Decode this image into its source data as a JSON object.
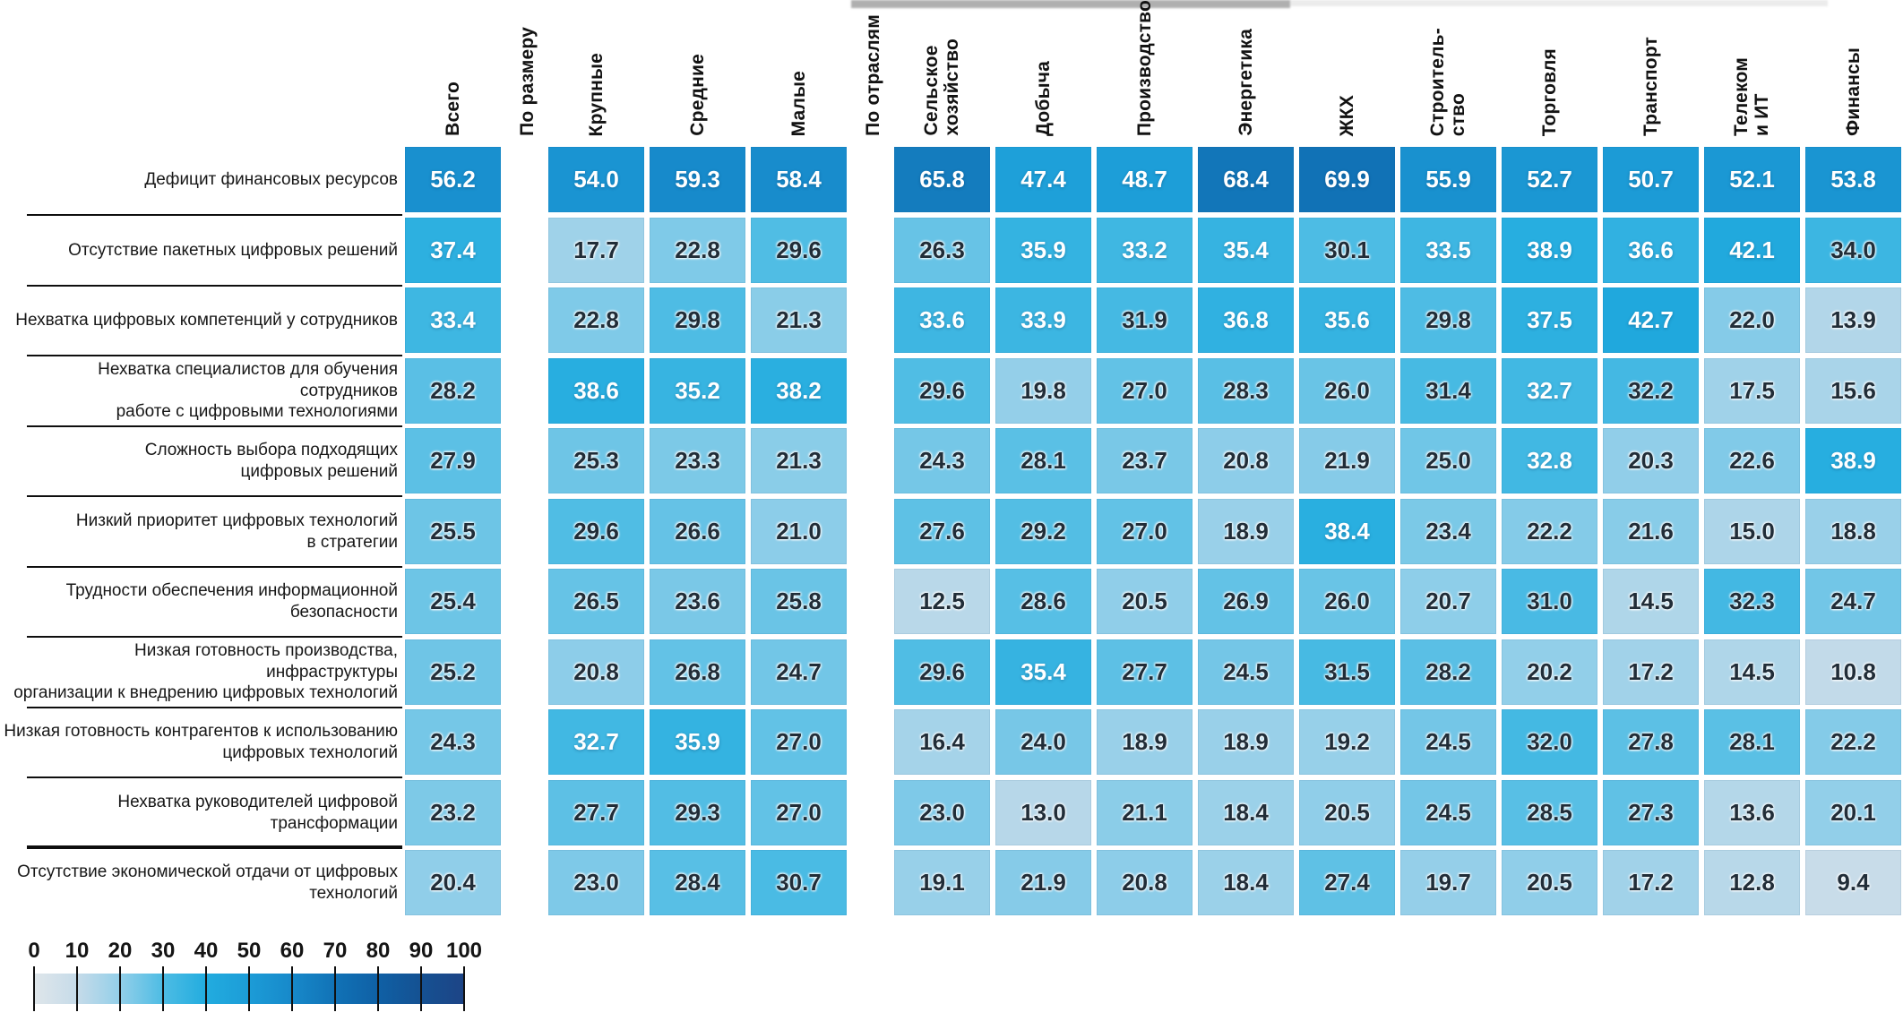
{
  "chart_data": {
    "type": "heatmap",
    "title": "",
    "column_groups": [
      {
        "label": "",
        "columns": [
          "Всего"
        ]
      },
      {
        "label": "По размеру",
        "columns": [
          "Крупные",
          "Средние",
          "Малые"
        ]
      },
      {
        "label": "По отраслям",
        "columns": [
          "Сельское\nхозяйство",
          "Добыча",
          "Производство",
          "Энергетика",
          "ЖКХ",
          "Строитель-\nство",
          "Торговля",
          "Транспорт",
          "Телеком\nи ИТ",
          "Финансы"
        ]
      }
    ],
    "rows": [
      {
        "label": "Дефицит финансовых ресурсов",
        "values": [
          56.2,
          54.0,
          59.3,
          58.4,
          65.8,
          47.4,
          48.7,
          68.4,
          69.9,
          55.9,
          52.7,
          50.7,
          52.1,
          53.8
        ],
        "white_text": [
          0,
          1,
          2,
          3,
          4,
          5,
          6,
          7,
          8,
          9,
          10,
          11,
          12,
          13
        ]
      },
      {
        "label": "Отсутствие пакетных цифровых решений",
        "values": [
          37.4,
          17.7,
          22.8,
          29.6,
          26.3,
          35.9,
          33.2,
          35.4,
          30.1,
          33.5,
          38.9,
          36.6,
          42.1,
          34.0
        ],
        "white_text": [
          0,
          5,
          6,
          7,
          9,
          10,
          11,
          12
        ]
      },
      {
        "label": "Нехватка цифровых компетенций у сотрудников",
        "values": [
          33.4,
          22.8,
          29.8,
          21.3,
          33.6,
          33.9,
          31.9,
          36.8,
          35.6,
          29.8,
          37.5,
          42.7,
          22.0,
          13.9
        ],
        "white_text": [
          0,
          4,
          5,
          7,
          8,
          10,
          11
        ]
      },
      {
        "label": "Нехватка специалистов для обучения сотрудников\nработе с цифровыми технологиями",
        "values": [
          28.2,
          38.6,
          35.2,
          38.2,
          29.6,
          19.8,
          27.0,
          28.3,
          26.0,
          31.4,
          32.7,
          32.2,
          17.5,
          15.6
        ],
        "white_text": [
          1,
          2,
          3,
          10
        ]
      },
      {
        "label": "Сложность выбора подходящих\nцифровых решений",
        "values": [
          27.9,
          25.3,
          23.3,
          21.3,
          24.3,
          28.1,
          23.7,
          20.8,
          21.9,
          25.0,
          32.8,
          20.3,
          22.6,
          38.9
        ],
        "white_text": [
          10,
          13
        ]
      },
      {
        "label": "Низкий приоритет цифровых технологий\nв стратегии",
        "values": [
          25.5,
          29.6,
          26.6,
          21.0,
          27.6,
          29.2,
          27.0,
          18.9,
          38.4,
          23.4,
          22.2,
          21.6,
          15.0,
          18.8
        ],
        "white_text": [
          8
        ]
      },
      {
        "label": "Трудности обеспечения информационной\nбезопасности",
        "values": [
          25.4,
          26.5,
          23.6,
          25.8,
          12.5,
          28.6,
          20.5,
          26.9,
          26.0,
          20.7,
          31.0,
          14.5,
          32.3,
          24.7
        ],
        "white_text": []
      },
      {
        "label": "Низкая готовность производства, инфраструктуры\nорганизации к внедрению цифровых технологий",
        "values": [
          25.2,
          20.8,
          26.8,
          24.7,
          29.6,
          35.4,
          27.7,
          24.5,
          31.5,
          28.2,
          20.2,
          17.2,
          14.5,
          10.8
        ],
        "white_text": [
          5
        ]
      },
      {
        "label": "Низкая готовность контрагентов к использованию\nцифровых технологий",
        "values": [
          24.3,
          32.7,
          35.9,
          27.0,
          16.4,
          24.0,
          18.9,
          18.9,
          19.2,
          24.5,
          32.0,
          27.8,
          28.1,
          22.2
        ],
        "white_text": [
          1,
          2
        ]
      },
      {
        "label": "Нехватка руководителей цифровой трансформации",
        "values": [
          23.2,
          27.7,
          29.3,
          27.0,
          23.0,
          13.0,
          21.1,
          18.4,
          20.5,
          24.5,
          28.5,
          27.3,
          13.6,
          20.1
        ],
        "white_text": []
      },
      {
        "label": "Отсутствие экономической отдачи от цифровых\nтехнологий",
        "values": [
          20.4,
          23.0,
          28.4,
          30.7,
          19.1,
          21.9,
          20.8,
          18.4,
          27.4,
          19.7,
          20.5,
          17.2,
          12.8,
          9.4
        ],
        "white_text": []
      }
    ],
    "legend": {
      "min": 0,
      "max": 100,
      "ticks": [
        0,
        10,
        20,
        30,
        40,
        50,
        60,
        70,
        80,
        90,
        100
      ]
    },
    "colormap": [
      [
        0,
        "#dfe6ea"
      ],
      [
        10,
        "#c6dbe9"
      ],
      [
        20,
        "#93cfe9"
      ],
      [
        30,
        "#4dbce4"
      ],
      [
        40,
        "#22acdf"
      ],
      [
        50,
        "#1c9cd7"
      ],
      [
        60,
        "#1789ca"
      ],
      [
        70,
        "#1172b6"
      ],
      [
        80,
        "#0f60a5"
      ],
      [
        90,
        "#155192"
      ],
      [
        100,
        "#1d4486"
      ]
    ],
    "text_colors": {
      "dark": "#212d38",
      "light": "#ffffff"
    }
  }
}
